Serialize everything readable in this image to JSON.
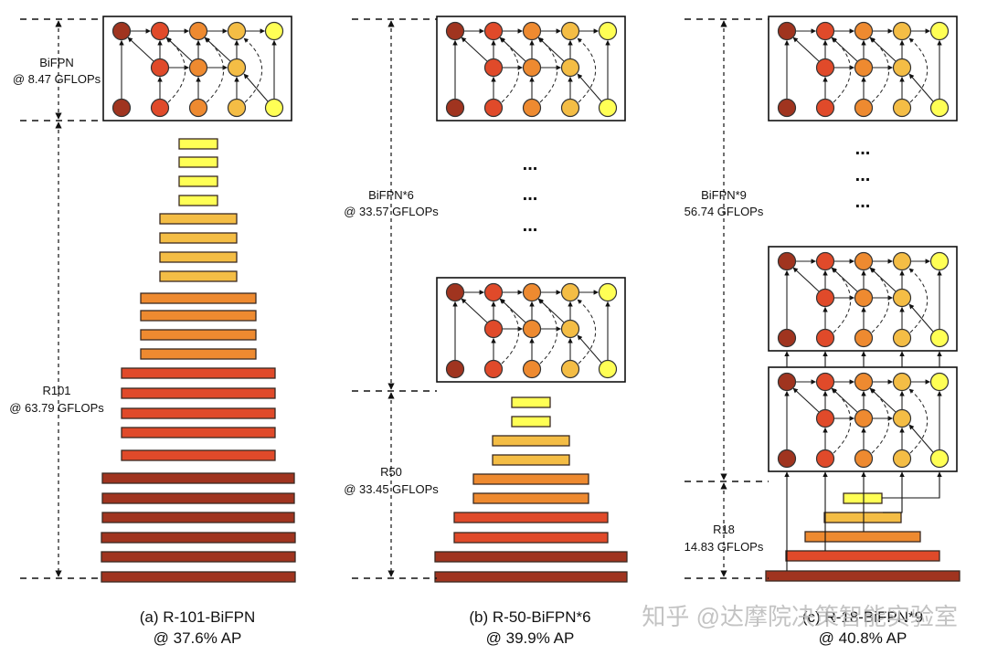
{
  "colors": {
    "dark_red": "#a0341f",
    "red": "#e04a2a",
    "orange": "#ee8a30",
    "light_orange": "#f4bd45",
    "yellow": "#ffff55",
    "stroke": "#333333",
    "box_stroke": "#111111",
    "watermark": "#b9b9b9"
  },
  "labels": {
    "a_bifpn_name": "BiFPN",
    "a_bifpn_flops": "@ 8.47 GFLOPs",
    "a_backbone_name": "R101",
    "a_backbone_flops": "@ 63.79 GFLOPs",
    "b_bifpn_name": "BiFPN*6",
    "b_bifpn_flops": "@ 33.57 GFLOPs",
    "b_backbone_name": "R50",
    "b_backbone_flops": "@ 33.45 GFLOPs",
    "c_bifpn_name": "BiFPN*9",
    "c_bifpn_flops": "56.74 GFLOPs",
    "c_backbone_name": "R18",
    "c_backbone_flops": "14.83 GFLOPs"
  },
  "captions": {
    "a_title": "(a) R-101-BiFPN",
    "a_ap": "@ 37.6% AP",
    "b_title": "(b) R-50-BiFPN*6",
    "b_ap": "@ 39.9% AP",
    "c_title": "(c) R-18-BiFPN*9",
    "c_ap": "@ 40.8% AP"
  },
  "ellipsis": "...",
  "watermark": "知乎 @达摩院决策智能实验室"
}
